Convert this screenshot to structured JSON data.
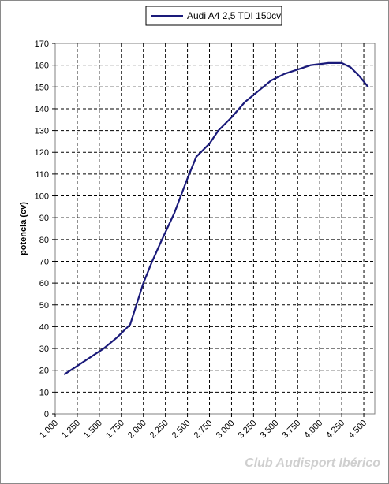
{
  "chart_data": {
    "type": "line",
    "title": "",
    "xlabel": "",
    "ylabel": "potencia (cv)",
    "x_ticks": [
      "1.000",
      "1.250",
      "1.500",
      "1.750",
      "2.000",
      "2.250",
      "2.500",
      "2.750",
      "3.000",
      "3.250",
      "3.500",
      "3.750",
      "4.000",
      "4.250",
      "4.500"
    ],
    "xlim": [
      1000,
      4625
    ],
    "ylim": [
      0,
      170
    ],
    "y_ticks": [
      0,
      10,
      20,
      30,
      40,
      50,
      60,
      70,
      80,
      90,
      100,
      110,
      120,
      130,
      140,
      150,
      160,
      170
    ],
    "grid": true,
    "legend_position": "top-center",
    "series": [
      {
        "name": "Audi A4 2,5 TDI 150cv",
        "color": "#1a1a7a",
        "x": [
          1100,
          1250,
          1400,
          1550,
          1700,
          1850,
          2000,
          2100,
          2200,
          2350,
          2500,
          2600,
          2750,
          2850,
          3000,
          3150,
          3300,
          3450,
          3600,
          3750,
          3900,
          4100,
          4250,
          4350,
          4450,
          4550
        ],
        "y": [
          18,
          22,
          26,
          30,
          35,
          41,
          60,
          70,
          79,
          92,
          108,
          118,
          124,
          130,
          136,
          143,
          148,
          153,
          156,
          158,
          160,
          161,
          161,
          159,
          155,
          150
        ]
      }
    ]
  },
  "watermark": "Club Audisport Ibérico"
}
